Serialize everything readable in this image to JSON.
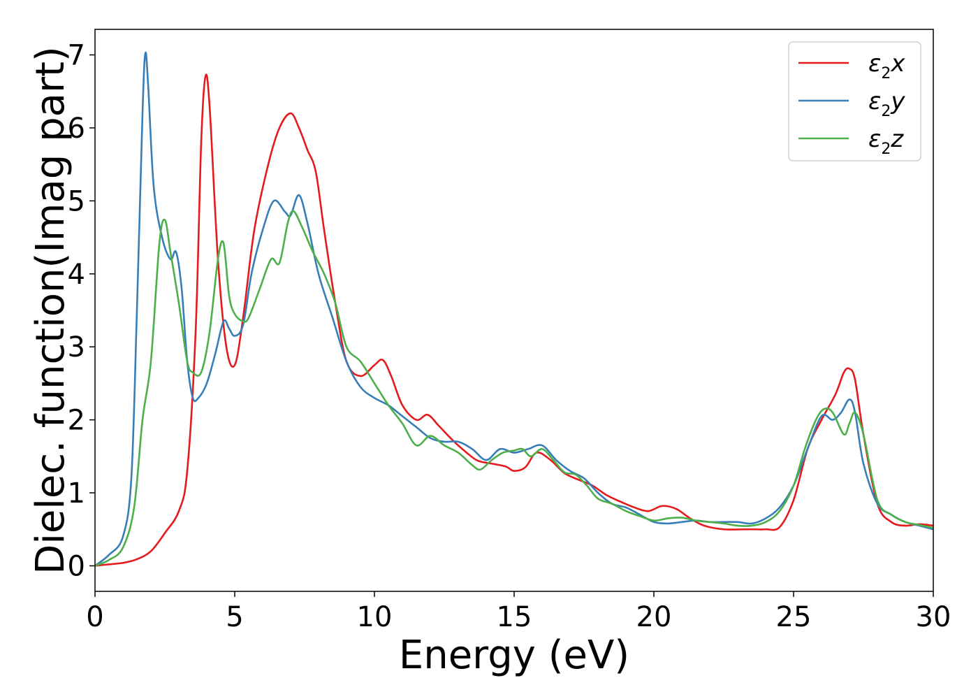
{
  "chart_data": {
    "type": "line",
    "title": "",
    "xlabel": "Energy (eV)",
    "ylabel": "Dielec. function(Imag part)",
    "xlim": [
      0,
      30
    ],
    "ylim": [
      -0.35,
      7.35
    ],
    "xticks": [
      0,
      5,
      10,
      15,
      20,
      25,
      30
    ],
    "yticks": [
      0,
      1,
      2,
      3,
      4,
      5,
      6,
      7
    ],
    "grid": false,
    "legend_position": "top-right",
    "series": [
      {
        "name": "ε2x",
        "legend": {
          "symbol": "ε",
          "sub": "2",
          "axis": "x"
        },
        "color": "#e41a1c",
        "x": [
          0,
          0.5,
          1,
          1.5,
          2,
          2.5,
          3,
          3.3,
          3.6,
          3.8,
          3.95,
          4.1,
          4.4,
          4.7,
          5.0,
          5.3,
          5.7,
          6.2,
          6.6,
          7.0,
          7.3,
          7.6,
          7.9,
          8.2,
          8.6,
          9.0,
          9.5,
          10.0,
          10.3,
          10.6,
          11.0,
          11.5,
          11.9,
          12.3,
          12.8,
          13.3,
          13.7,
          14.2,
          14.7,
          15.0,
          15.4,
          15.8,
          16.3,
          16.8,
          17.3,
          17.8,
          18.3,
          18.8,
          19.3,
          19.8,
          20.3,
          20.8,
          21.3,
          21.8,
          22.5,
          23.2,
          23.6,
          24.0,
          24.5,
          25.0,
          25.5,
          26.0,
          26.5,
          26.8,
          27.0,
          27.2,
          27.5,
          28.0,
          28.5,
          29.0,
          29.5,
          30.0
        ],
        "values": [
          0,
          0.02,
          0.04,
          0.09,
          0.2,
          0.45,
          0.75,
          1.3,
          3.2,
          5.8,
          6.7,
          6.3,
          4.2,
          3.0,
          2.75,
          3.4,
          4.6,
          5.5,
          6.0,
          6.2,
          6.0,
          5.7,
          5.4,
          4.6,
          3.6,
          2.8,
          2.6,
          2.75,
          2.82,
          2.6,
          2.2,
          2.0,
          2.07,
          1.92,
          1.72,
          1.55,
          1.44,
          1.4,
          1.36,
          1.3,
          1.35,
          1.55,
          1.45,
          1.27,
          1.18,
          1.1,
          0.97,
          0.88,
          0.8,
          0.75,
          0.82,
          0.78,
          0.65,
          0.55,
          0.5,
          0.5,
          0.5,
          0.5,
          0.53,
          0.9,
          1.6,
          2.0,
          2.35,
          2.65,
          2.7,
          2.55,
          1.8,
          0.85,
          0.6,
          0.55,
          0.57,
          0.55
        ]
      },
      {
        "name": "ε2y",
        "legend": {
          "symbol": "ε",
          "sub": "2",
          "axis": "y"
        },
        "color": "#377eb8",
        "x": [
          0,
          0.5,
          1,
          1.3,
          1.5,
          1.7,
          1.8,
          1.9,
          2.1,
          2.4,
          2.7,
          2.9,
          3.1,
          3.3,
          3.5,
          3.7,
          4.0,
          4.3,
          4.6,
          4.8,
          5.0,
          5.3,
          5.6,
          6.0,
          6.4,
          6.8,
          7.0,
          7.3,
          7.6,
          8.0,
          8.5,
          9.0,
          9.5,
          10.0,
          10.5,
          11.0,
          11.5,
          12.0,
          12.5,
          13.0,
          13.5,
          14.0,
          14.5,
          15.0,
          15.5,
          16.0,
          16.5,
          17.0,
          17.5,
          18.0,
          18.5,
          19.0,
          19.5,
          20.0,
          20.5,
          21.0,
          21.5,
          22.0,
          22.5,
          23.0,
          23.5,
          24.0,
          24.5,
          25.0,
          25.5,
          26.0,
          26.4,
          26.7,
          27.0,
          27.2,
          27.5,
          28.0,
          28.5,
          29.0,
          29.5,
          30.0
        ],
        "values": [
          0,
          0.15,
          0.4,
          1.2,
          3.5,
          6.2,
          7.02,
          6.6,
          5.2,
          4.5,
          4.2,
          4.3,
          3.8,
          2.8,
          2.3,
          2.3,
          2.5,
          2.9,
          3.35,
          3.25,
          3.15,
          3.3,
          4.0,
          4.6,
          5.0,
          4.85,
          4.8,
          5.08,
          4.7,
          4.0,
          3.4,
          2.8,
          2.45,
          2.3,
          2.2,
          2.05,
          1.9,
          1.75,
          1.7,
          1.7,
          1.6,
          1.45,
          1.6,
          1.55,
          1.6,
          1.65,
          1.45,
          1.3,
          1.2,
          1.0,
          0.85,
          0.8,
          0.7,
          0.6,
          0.58,
          0.6,
          0.62,
          0.6,
          0.6,
          0.6,
          0.58,
          0.65,
          0.8,
          1.1,
          1.6,
          2.05,
          2.0,
          2.1,
          2.28,
          2.1,
          1.4,
          0.85,
          0.7,
          0.6,
          0.55,
          0.5
        ]
      },
      {
        "name": "ε2z",
        "legend": {
          "symbol": "ε",
          "sub": "2",
          "axis": "z"
        },
        "color": "#4daf4a",
        "x": [
          0,
          0.5,
          1,
          1.4,
          1.7,
          2.0,
          2.3,
          2.5,
          2.7,
          3.0,
          3.3,
          3.5,
          3.8,
          4.1,
          4.4,
          4.6,
          4.8,
          5.0,
          5.3,
          5.5,
          5.9,
          6.3,
          6.6,
          6.9,
          7.1,
          7.4,
          7.8,
          8.2,
          8.6,
          9.0,
          9.5,
          10.0,
          10.5,
          11.0,
          11.5,
          12.0,
          12.5,
          13.0,
          13.5,
          13.8,
          14.2,
          14.6,
          15.0,
          15.3,
          15.6,
          16.0,
          16.4,
          16.8,
          17.2,
          17.6,
          18.0,
          18.5,
          19.0,
          19.5,
          20.0,
          20.5,
          21.0,
          21.5,
          22.0,
          22.5,
          23.0,
          23.5,
          24.0,
          24.5,
          25.0,
          25.4,
          25.8,
          26.1,
          26.4,
          26.8,
          27.0,
          27.2,
          27.5,
          28.0,
          28.5,
          29.0,
          29.5,
          30.0
        ],
        "values": [
          0,
          0.08,
          0.25,
          0.8,
          2.0,
          2.8,
          4.4,
          4.74,
          4.3,
          3.6,
          2.8,
          2.65,
          2.65,
          3.2,
          4.2,
          4.42,
          3.7,
          3.45,
          3.35,
          3.4,
          3.8,
          4.2,
          4.15,
          4.7,
          4.86,
          4.65,
          4.3,
          4.0,
          3.6,
          3.0,
          2.8,
          2.5,
          2.2,
          1.95,
          1.65,
          1.78,
          1.65,
          1.55,
          1.38,
          1.32,
          1.45,
          1.55,
          1.58,
          1.6,
          1.5,
          1.6,
          1.45,
          1.28,
          1.25,
          1.1,
          0.92,
          0.85,
          0.75,
          0.68,
          0.62,
          0.65,
          0.66,
          0.62,
          0.6,
          0.58,
          0.55,
          0.55,
          0.6,
          0.75,
          1.1,
          1.6,
          2.0,
          2.15,
          2.1,
          1.8,
          1.95,
          2.1,
          1.8,
          0.9,
          0.7,
          0.6,
          0.56,
          0.52
        ]
      }
    ]
  }
}
